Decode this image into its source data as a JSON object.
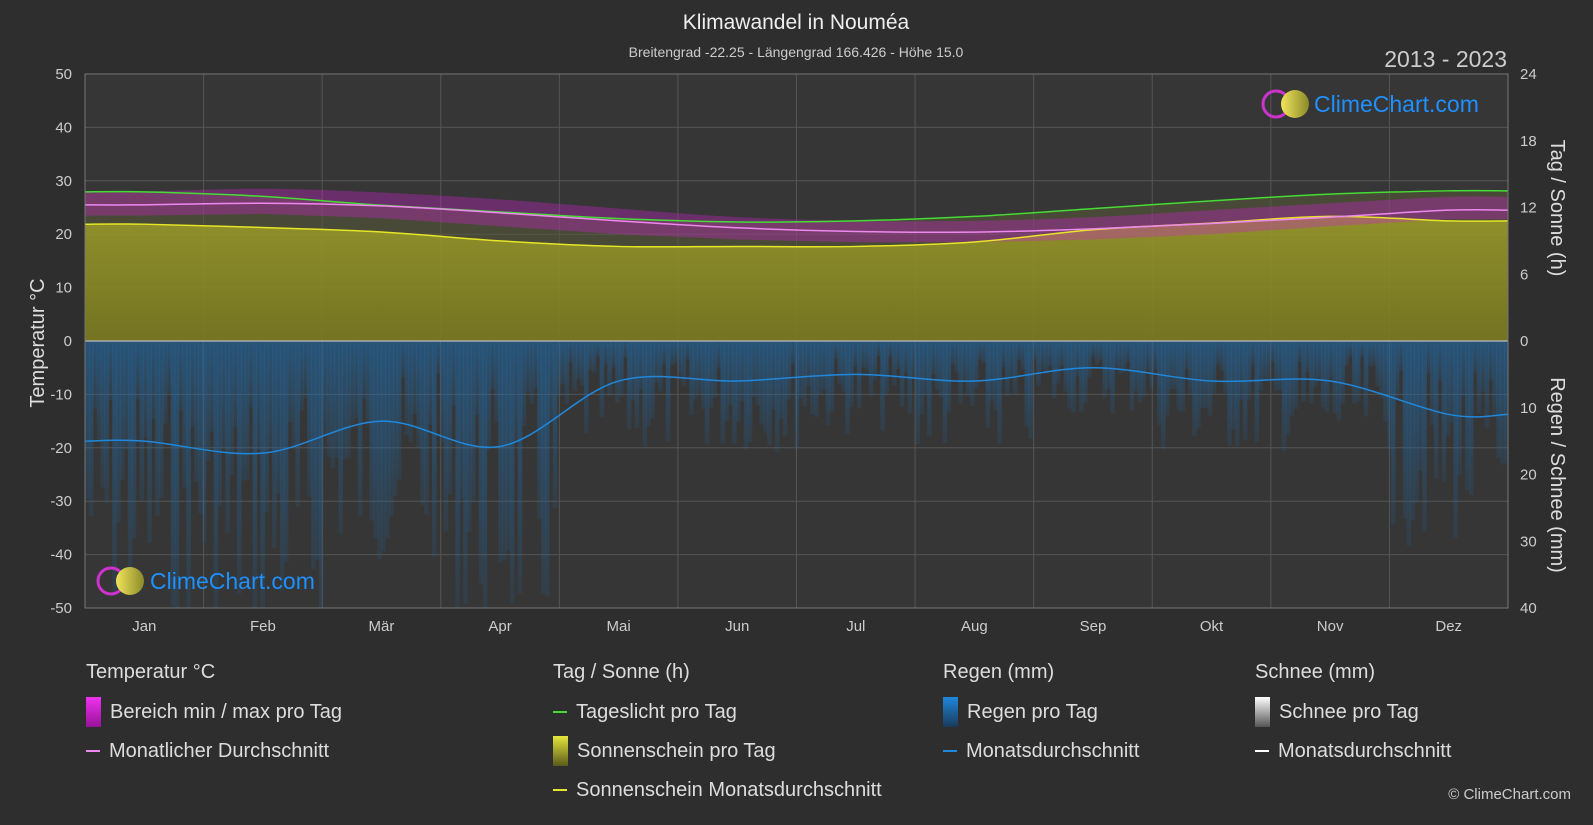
{
  "title": "Klimawandel in Nouméa",
  "subtitle": "Breitengrad -22.25 - Längengrad 166.426 - Höhe 15.0",
  "year_range": "2013 - 2023",
  "brand": "ClimeChart.com",
  "copyright": "© ClimeChart.com",
  "colors": {
    "background": "#2e2e2e",
    "daylight": "#44dd33",
    "sunshine_avg": "#e6e626",
    "sunshine_fill": "#8a8a26",
    "temp_avg": "#ee88ee",
    "temp_range": "#dd22dd",
    "rain": "#1f88dd",
    "snow": "#ffffff",
    "brand": "#1e90ff"
  },
  "chart_data": {
    "type": "line",
    "x_labels": [
      "Jan",
      "Feb",
      "Mär",
      "Apr",
      "Mai",
      "Jun",
      "Jul",
      "Aug",
      "Sep",
      "Okt",
      "Nov",
      "Dez"
    ],
    "left_axis": {
      "label": "Temperatur °C",
      "range": [
        -50,
        50
      ],
      "ticks": [
        50,
        40,
        30,
        20,
        10,
        0,
        -10,
        -20,
        -30,
        -40,
        -50
      ]
    },
    "right_axis_top": {
      "label": "Tag / Sonne (h)",
      "range": [
        0,
        24
      ],
      "ticks": [
        24,
        18,
        12,
        6,
        0
      ]
    },
    "right_axis_bottom": {
      "label": "Regen / Schnee (mm)",
      "range": [
        0,
        40
      ],
      "ticks": [
        0,
        10,
        20,
        30,
        40
      ]
    },
    "grid": true,
    "series": [
      {
        "key": "daylight",
        "axis": "sun",
        "values": [
          13.4,
          13.0,
          12.2,
          11.6,
          11.0,
          10.7,
          10.8,
          11.2,
          11.9,
          12.6,
          13.2,
          13.5
        ]
      },
      {
        "key": "sunshine_avg",
        "axis": "sun",
        "values": [
          10.5,
          10.2,
          9.8,
          9.0,
          8.5,
          8.5,
          8.5,
          8.9,
          10.0,
          10.6,
          11.2,
          10.8
        ]
      },
      {
        "key": "temp_avg",
        "axis": "temp",
        "values": [
          25.5,
          25.8,
          25.3,
          24.0,
          22.5,
          21.2,
          20.5,
          20.4,
          21.0,
          22.0,
          23.2,
          24.5
        ]
      },
      {
        "key": "temp_max",
        "axis": "temp",
        "values": [
          28.0,
          28.5,
          27.8,
          26.5,
          24.8,
          23.2,
          22.5,
          22.5,
          23.2,
          24.5,
          25.8,
          27.0
        ]
      },
      {
        "key": "temp_min",
        "axis": "temp",
        "values": [
          23.5,
          23.8,
          23.0,
          21.5,
          20.0,
          19.0,
          18.5,
          18.5,
          19.0,
          20.0,
          21.5,
          22.8
        ]
      },
      {
        "key": "rain_avg",
        "axis": "rain",
        "values": [
          15.0,
          16.8,
          12.0,
          15.8,
          6.0,
          6.0,
          5.0,
          6.0,
          4.0,
          6.0,
          6.0,
          11.0
        ]
      }
    ]
  },
  "legend": {
    "groups": [
      {
        "title": "Temperatur °C",
        "items": [
          {
            "label": "Bereich min / max pro Tag",
            "swatch": "box",
            "color": "#dd22dd"
          },
          {
            "label": "Monatlicher Durchschnitt",
            "swatch": "line",
            "color": "#ee88ee"
          }
        ]
      },
      {
        "title": "Tag / Sonne (h)",
        "items": [
          {
            "label": "Tageslicht pro Tag",
            "swatch": "line",
            "color": "#44dd33"
          },
          {
            "label": "Sonnenschein pro Tag",
            "swatch": "box",
            "color": "#c8c83a"
          },
          {
            "label": "Sonnenschein Monatsdurchschnitt",
            "swatch": "line",
            "color": "#e6e626"
          }
        ]
      },
      {
        "title": "Regen (mm)",
        "items": [
          {
            "label": "Regen pro Tag",
            "swatch": "box",
            "color": "#1f88dd"
          },
          {
            "label": "Monatsdurchschnitt",
            "swatch": "line",
            "color": "#1f88dd"
          }
        ]
      },
      {
        "title": "Schnee (mm)",
        "items": [
          {
            "label": "Schnee pro Tag",
            "swatch": "box",
            "color": "#dddddd"
          },
          {
            "label": "Monatsdurchschnitt",
            "swatch": "line",
            "color": "#ffffff"
          }
        ]
      }
    ]
  }
}
